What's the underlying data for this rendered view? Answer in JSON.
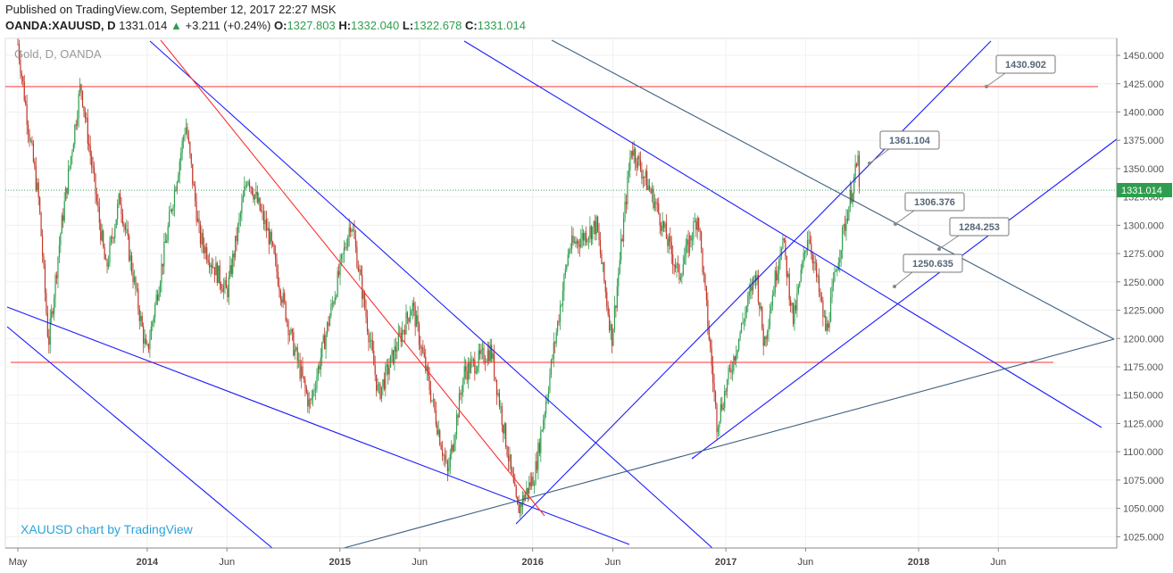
{
  "header": {
    "published": "Published on TradingView.com, September 12, 2017 22:27 MSK",
    "symbol": "OANDA:XAUUSD, D",
    "last": "1331.014",
    "arrow": "▲",
    "change": "+3.211 (+0.24%)",
    "o_label": "O:",
    "o": "1327.803",
    "h_label": "H:",
    "h": "1332.040",
    "l_label": "L:",
    "l": "1322.678",
    "c_label": "C:",
    "c": "1331.014"
  },
  "legend": "Gold, D, OANDA",
  "watermark": "XAUUSD chart by TradingView",
  "colors": {
    "up": "#2e9e4e",
    "down": "#c0392b",
    "blue_line": "#1a1aff",
    "slate_line": "#3d6080",
    "red_line": "#ff3030",
    "last_badge": "#2e9e4e"
  },
  "chart_data": {
    "type": "candlestick",
    "title": "Gold, D, OANDA",
    "ylim": [
      1015,
      1465
    ],
    "y_ticks": [
      "1450.000",
      "1425.000",
      "1400.000",
      "1375.000",
      "1350.000",
      "1325.000",
      "1300.000",
      "1275.000",
      "1250.000",
      "1225.000",
      "1200.000",
      "1175.000",
      "1150.000",
      "1125.000",
      "1100.000",
      "1075.000",
      "1050.000",
      "1025.000"
    ],
    "x_ticks": [
      "May",
      "2014",
      "Jun",
      "2015",
      "Jun",
      "2016",
      "Jun",
      "2017",
      "Jun",
      "2018",
      "Jun"
    ],
    "last_price": "1331.014",
    "price_path": [
      [
        "2013-05-01",
        1460
      ],
      [
        "2013-05-20",
        1390
      ],
      [
        "2013-06-10",
        1320
      ],
      [
        "2013-06-28",
        1195
      ],
      [
        "2013-07-20",
        1290
      ],
      [
        "2013-08-28",
        1425
      ],
      [
        "2013-10-15",
        1260
      ],
      [
        "2013-11-10",
        1325
      ],
      [
        "2013-12-31",
        1185
      ],
      [
        "2014-03-15",
        1390
      ],
      [
        "2014-04-10",
        1290
      ],
      [
        "2014-06-01",
        1240
      ],
      [
        "2014-07-10",
        1345
      ],
      [
        "2014-08-20",
        1290
      ],
      [
        "2014-10-01",
        1200
      ],
      [
        "2014-11-05",
        1140
      ],
      [
        "2015-01-22",
        1305
      ],
      [
        "2015-03-15",
        1150
      ],
      [
        "2015-05-18",
        1230
      ],
      [
        "2015-07-24",
        1080
      ],
      [
        "2015-08-24",
        1170
      ],
      [
        "2015-10-14",
        1190
      ],
      [
        "2015-12-03",
        1048
      ],
      [
        "2016-01-05",
        1080
      ],
      [
        "2016-03-10",
        1280
      ],
      [
        "2016-05-01",
        1300
      ],
      [
        "2016-05-30",
        1200
      ],
      [
        "2016-07-06",
        1370
      ],
      [
        "2016-08-20",
        1320
      ],
      [
        "2016-10-04",
        1255
      ],
      [
        "2016-11-09",
        1310
      ],
      [
        "2016-12-15",
        1125
      ],
      [
        "2017-02-27",
        1260
      ],
      [
        "2017-03-14",
        1195
      ],
      [
        "2017-04-18",
        1290
      ],
      [
        "2017-05-09",
        1215
      ],
      [
        "2017-06-06",
        1295
      ],
      [
        "2017-07-10",
        1205
      ],
      [
        "2017-08-01",
        1270
      ],
      [
        "2017-09-08",
        1357
      ],
      [
        "2017-09-12",
        1331
      ]
    ],
    "levels": [
      {
        "price": 1431,
        "label": "1430.902",
        "color": "red"
      },
      {
        "price": 1181,
        "label": "",
        "color": "red"
      }
    ],
    "callouts": [
      "1430.902",
      "1361.104",
      "1306.376",
      "1284.253",
      "1250.635"
    ],
    "grid": true
  }
}
